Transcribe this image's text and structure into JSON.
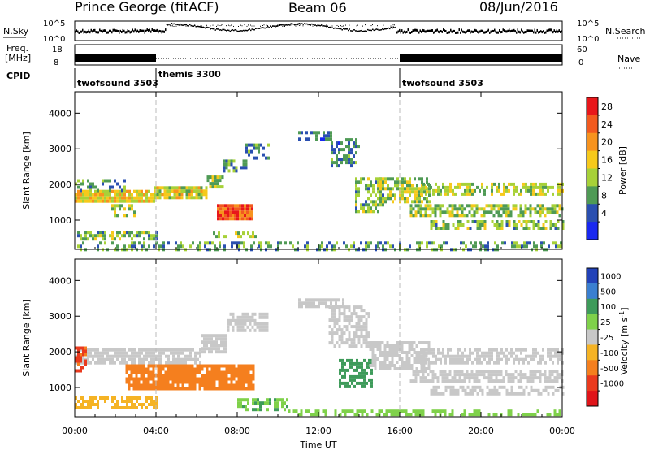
{
  "header": {
    "station": "Prince George (fitACF)",
    "beam": "Beam 06",
    "date": "08/Jun/2016"
  },
  "top_panels": {
    "nsky_label": "N.Sky",
    "nsky_ticks": [
      "10^5",
      "10^0"
    ],
    "nsearch_label": "N.Search",
    "nsearch_ticks": [
      "10^5",
      "10^0"
    ],
    "freq_label": "Freq.",
    "freq_unit": "[MHz]",
    "freq_ticks": [
      "18",
      "8"
    ],
    "nave_label": "Nave",
    "nave_ticks": [
      "60",
      "0"
    ],
    "cpid_label": "CPID",
    "cpid_modes": [
      {
        "name": "twofsound",
        "id": "3503",
        "start_hour": 0,
        "end_hour": 4
      },
      {
        "name": "themis",
        "id": "3300",
        "start_hour": 4,
        "end_hour": 16
      },
      {
        "name": "twofsound",
        "id": "3503",
        "start_hour": 16,
        "end_hour": 24
      }
    ]
  },
  "colorbars": {
    "power": {
      "label": "Power [dB]",
      "ticks": [
        "28",
        "24",
        "20",
        "16",
        "12",
        "8",
        "4"
      ],
      "colors": [
        "#e8171b",
        "#f25a1f",
        "#f7931e",
        "#f6c91b",
        "#a7d138",
        "#4f9a55",
        "#2a4fb0",
        "#1928f0"
      ]
    },
    "velocity": {
      "label": "Velocity [m s",
      "label_exp": "-1",
      "label_end": "]",
      "ticks": [
        "1000",
        "500",
        "100",
        "25",
        "-25",
        "-100",
        "-500",
        "-1000"
      ],
      "colors": [
        "#2242b8",
        "#3a7fd0",
        "#3e9b5a",
        "#7fd14a",
        "#c8c8c8",
        "#f5b324",
        "#f57f1e",
        "#ea3a1e",
        "#e0151a"
      ]
    }
  },
  "axes": {
    "ylabel": "Slant Range [km]",
    "xlabel": "Time UT",
    "yticks": [
      "4000",
      "3000",
      "2000",
      "1000"
    ],
    "xticks": [
      "00:00",
      "04:00",
      "08:00",
      "12:00",
      "16:00",
      "20:00",
      "00:00"
    ]
  },
  "chart_data": [
    {
      "type": "heatmap",
      "title": "Power [dB]",
      "x_unit": "hours UT",
      "xlim": [
        0,
        24
      ],
      "ylim": [
        180,
        4600
      ],
      "clim": [
        0,
        32
      ],
      "bands": [
        {
          "t0": 0.0,
          "t1": 3.9,
          "r0": 1500,
          "r1": 1850,
          "v": 18,
          "d": 0.9
        },
        {
          "t0": 0.0,
          "t1": 2.5,
          "r0": 1850,
          "r1": 2150,
          "v": 10,
          "d": 0.45
        },
        {
          "t0": 3.9,
          "t1": 6.5,
          "r0": 1650,
          "r1": 1950,
          "v": 16,
          "d": 0.9
        },
        {
          "t0": 6.5,
          "t1": 7.3,
          "r0": 1900,
          "r1": 2250,
          "v": 14,
          "d": 0.8
        },
        {
          "t0": 7.3,
          "t1": 8.4,
          "r0": 2400,
          "r1": 2700,
          "v": 9,
          "d": 0.6
        },
        {
          "t0": 8.4,
          "t1": 9.5,
          "r0": 2750,
          "r1": 3150,
          "v": 8,
          "d": 0.55
        },
        {
          "t0": 7.0,
          "t1": 8.8,
          "r0": 1000,
          "r1": 1450,
          "v": 26,
          "d": 0.95
        },
        {
          "t0": 1.8,
          "t1": 3.0,
          "r0": 1150,
          "r1": 1450,
          "v": 14,
          "d": 0.6
        },
        {
          "t0": 0.0,
          "t1": 4.0,
          "r0": 500,
          "r1": 700,
          "v": 12,
          "d": 0.6
        },
        {
          "t0": 6.8,
          "t1": 9.0,
          "r0": 520,
          "r1": 680,
          "v": 14,
          "d": 0.55
        },
        {
          "t0": 11.0,
          "t1": 12.6,
          "r0": 3250,
          "r1": 3500,
          "v": 8,
          "d": 0.55
        },
        {
          "t0": 12.6,
          "t1": 14.0,
          "r0": 2500,
          "r1": 3300,
          "v": 8,
          "d": 0.5
        },
        {
          "t0": 13.8,
          "t1": 15.2,
          "r0": 1200,
          "r1": 2200,
          "v": 12,
          "d": 0.55
        },
        {
          "t0": 15.0,
          "t1": 17.5,
          "r0": 1500,
          "r1": 2200,
          "v": 13,
          "d": 0.7
        },
        {
          "t0": 17.0,
          "t1": 24.0,
          "r0": 1700,
          "r1": 2050,
          "v": 14,
          "d": 0.6
        },
        {
          "t0": 16.5,
          "t1": 24.0,
          "r0": 1150,
          "r1": 1450,
          "v": 13,
          "d": 0.65
        },
        {
          "t0": 17.5,
          "t1": 24.0,
          "r0": 800,
          "r1": 1000,
          "v": 12,
          "d": 0.55
        },
        {
          "t0": 0.0,
          "t1": 24.0,
          "r0": 200,
          "r1": 400,
          "v": 10,
          "d": 0.35
        }
      ]
    },
    {
      "type": "heatmap",
      "title": "Velocity [m s-1]",
      "x_unit": "hours UT",
      "xlim": [
        0,
        24
      ],
      "ylim": [
        180,
        4600
      ],
      "bands": [
        {
          "t0": 0.0,
          "t1": 6.2,
          "r0": 1700,
          "r1": 2100,
          "v": 0,
          "d": 0.85
        },
        {
          "t0": 6.2,
          "t1": 7.5,
          "r0": 2000,
          "r1": 2500,
          "v": 0,
          "d": 0.8
        },
        {
          "t0": 7.5,
          "t1": 9.5,
          "r0": 2600,
          "r1": 3100,
          "v": 0,
          "d": 0.7
        },
        {
          "t0": 0.0,
          "t1": 0.6,
          "r0": 1500,
          "r1": 2150,
          "v": -600,
          "d": 0.7
        },
        {
          "t0": 2.5,
          "t1": 8.8,
          "r0": 1000,
          "r1": 1650,
          "v": -150,
          "d": 0.9
        },
        {
          "t0": 0.0,
          "t1": 4.0,
          "r0": 450,
          "r1": 750,
          "v": -60,
          "d": 0.6
        },
        {
          "t0": 8.0,
          "t1": 10.5,
          "r0": 400,
          "r1": 700,
          "v": 90,
          "d": 0.6
        },
        {
          "t0": 10.5,
          "t1": 24.0,
          "r0": 200,
          "r1": 380,
          "v": 50,
          "d": 0.45
        },
        {
          "t0": 11.0,
          "t1": 13.2,
          "r0": 3250,
          "r1": 3500,
          "v": 0,
          "d": 0.7
        },
        {
          "t0": 12.5,
          "t1": 14.5,
          "r0": 2200,
          "r1": 3300,
          "v": 0,
          "d": 0.6
        },
        {
          "t0": 13.0,
          "t1": 14.6,
          "r0": 1000,
          "r1": 1800,
          "v": 300,
          "d": 0.65
        },
        {
          "t0": 14.5,
          "t1": 17.5,
          "r0": 1500,
          "r1": 2300,
          "v": 0,
          "d": 0.75
        },
        {
          "t0": 17.0,
          "t1": 24.0,
          "r0": 1700,
          "r1": 2100,
          "v": 0,
          "d": 0.65
        },
        {
          "t0": 16.5,
          "t1": 24.0,
          "r0": 1150,
          "r1": 1500,
          "v": 0,
          "d": 0.7
        },
        {
          "t0": 17.5,
          "t1": 24.0,
          "r0": 800,
          "r1": 1050,
          "v": 0,
          "d": 0.6
        }
      ]
    }
  ]
}
